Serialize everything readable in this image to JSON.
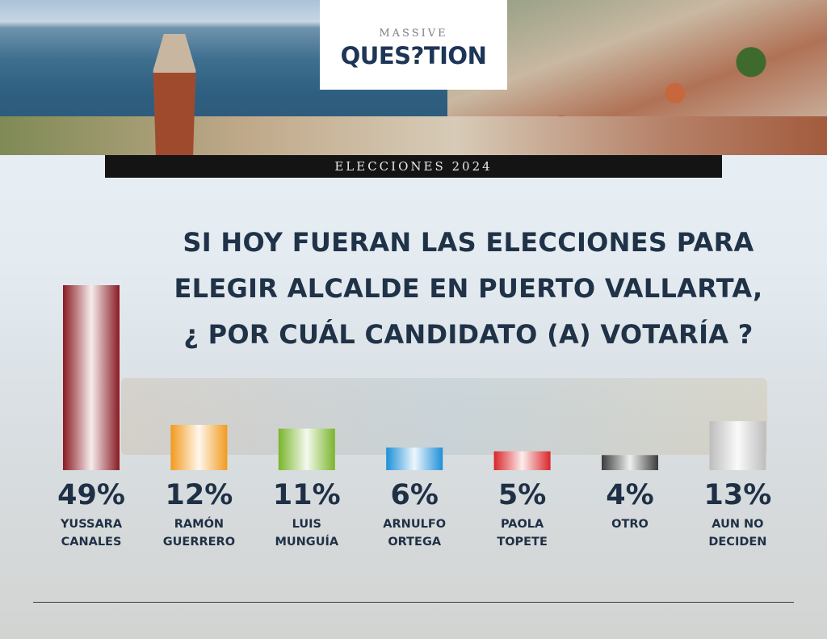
{
  "brand": {
    "top": "MASSIVE",
    "name": "QUES?TION"
  },
  "band_text": "ELECCIONES 2024",
  "headline": {
    "lines": [
      "SI HOY FUERAN LAS ELECCIONES PARA",
      "ELEGIR ALCALDE EN PUERTO VALLARTA,",
      "¿ POR CUÁL CANDIDATO (A) VOTARÍA ?"
    ]
  },
  "chart_data": {
    "type": "bar",
    "title": "SI HOY FUERAN LAS ELECCIONES PARA ELEGIR ALCALDE EN PUERTO VALLARTA, ¿ POR CUÁL CANDIDATO (A) VOTARÍA ?",
    "unit": "%",
    "ylim": [
      0,
      49
    ],
    "grid": false,
    "categories": [
      [
        "YUSSARA",
        "CANALES"
      ],
      [
        "RAMÓN",
        "GUERRERO"
      ],
      [
        "LUIS",
        "MUNGUÍA"
      ],
      [
        "ARNULFO",
        "ORTEGA"
      ],
      [
        "PAOLA",
        "TOPETE"
      ],
      [
        "OTRO"
      ],
      [
        "AUN NO",
        "DECIDEN"
      ]
    ],
    "values": [
      49,
      12,
      11,
      6,
      5,
      4,
      13
    ],
    "value_labels": [
      "49%",
      "12%",
      "11%",
      "6%",
      "5%",
      "4%",
      "13%"
    ],
    "colors": [
      "#8a1a22",
      "#f29a1e",
      "#79b52c",
      "#1e8fd8",
      "#d9262a",
      "#3b3b3b",
      "#bdbdbd"
    ]
  }
}
